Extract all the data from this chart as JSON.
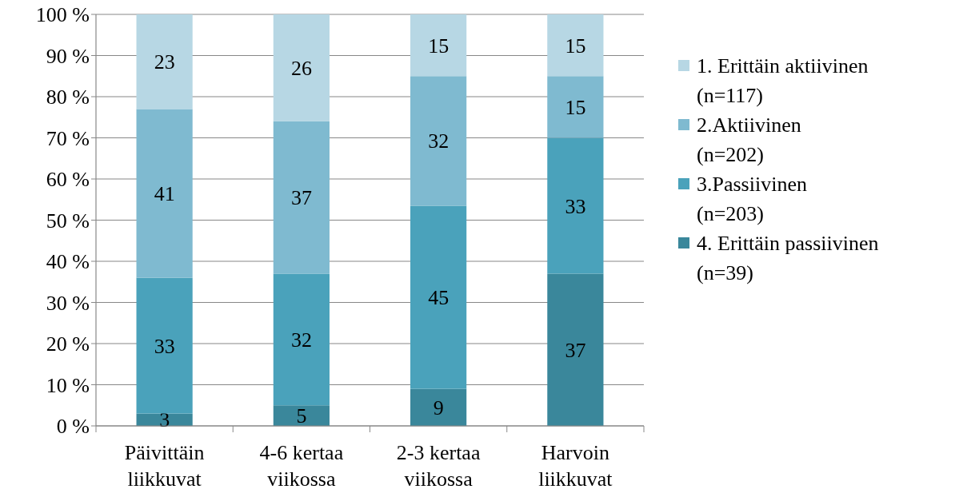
{
  "chart_data": {
    "type": "bar",
    "stacked": true,
    "categories": [
      "Päivittäin liikkuvat",
      "4-6 kertaa viikossa",
      "2-3 kertaa viikossa",
      "Harvoin liikkuvat"
    ],
    "series": [
      {
        "name": "4. Erittäin passiivinen (n=39)",
        "color": "#3a879b",
        "values": [
          3,
          5,
          9,
          37
        ],
        "value_labels": [
          "3",
          "5",
          "9",
          "37"
        ]
      },
      {
        "name": "3.Passiivinen (n=203)",
        "color": "#4aa2bb",
        "values": [
          33,
          32,
          44.5,
          33
        ],
        "value_labels": [
          "33",
          "32",
          "45",
          "33"
        ]
      },
      {
        "name": "2.Aktiivinen (n=202)",
        "color": "#7fbad0",
        "values": [
          41,
          37,
          31.5,
          15
        ],
        "value_labels": [
          "41",
          "37",
          "32",
          "15"
        ]
      },
      {
        "name": "1. Erittäin aktiivinen (n=117)",
        "color": "#b7d7e4",
        "values": [
          23,
          26,
          15,
          15
        ],
        "value_labels": [
          "23",
          "26",
          "15",
          "15"
        ]
      }
    ],
    "ylim": [
      0,
      100
    ],
    "yticks": [
      {
        "value": 0,
        "label": "0 %"
      },
      {
        "value": 10,
        "label": "10 %"
      },
      {
        "value": 20,
        "label": "20 %"
      },
      {
        "value": 30,
        "label": "30 %"
      },
      {
        "value": 40,
        "label": "40 %"
      },
      {
        "value": 50,
        "label": "50 %"
      },
      {
        "value": 60,
        "label": "60 %"
      },
      {
        "value": 70,
        "label": "70 %"
      },
      {
        "value": 80,
        "label": "80 %"
      },
      {
        "value": 90,
        "label": "90 %"
      },
      {
        "value": 100,
        "label": "100 %"
      }
    ],
    "grid": "y",
    "legend": "right"
  }
}
